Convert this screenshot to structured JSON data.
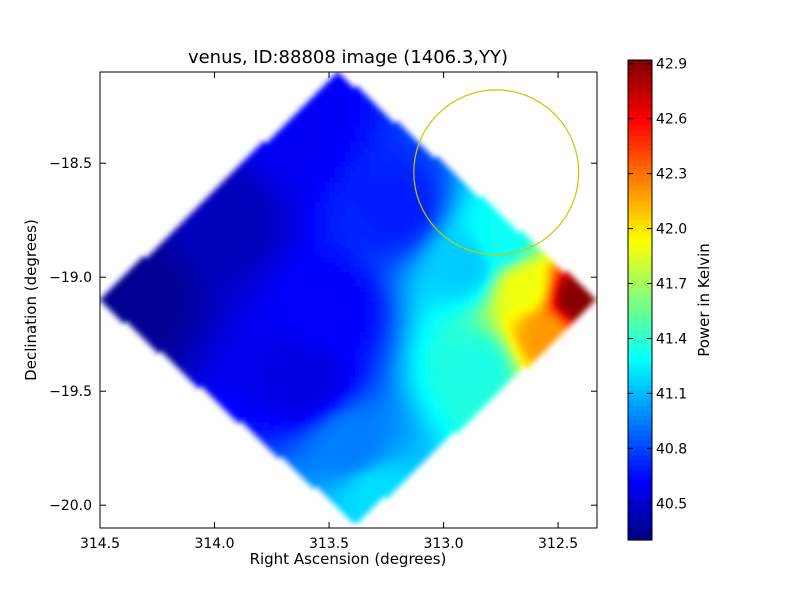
{
  "chart_data": {
    "type": "heatmap",
    "title": "venus, ID:88808 image (1406.3,YY)",
    "xlabel": "Right Ascension (degrees)",
    "ylabel": "Declination (degrees)",
    "xlim": [
      314.5,
      312.33
    ],
    "ylim": [
      -20.1,
      -18.1
    ],
    "x_ticks": [
      314.5,
      314.0,
      313.5,
      313.0,
      312.5
    ],
    "x_tick_labels": [
      "314.5",
      "314.0",
      "313.5",
      "313.0",
      "312.5"
    ],
    "y_ticks": [
      -18.5,
      -19.0,
      -19.5,
      -20.0
    ],
    "y_tick_labels": [
      "−18.5",
      "−19.0",
      "−19.5",
      "−20.0"
    ],
    "colorbar": {
      "label": "Power in Kelvin",
      "colormap": "jet",
      "range": [
        40.3,
        42.92
      ],
      "ticks": [
        40.5,
        40.8,
        41.1,
        41.4,
        41.7,
        42.0,
        42.3,
        42.6,
        42.9
      ],
      "tick_labels": [
        "40.5",
        "40.8",
        "41.1",
        "41.4",
        "41.7",
        "42.0",
        "42.3",
        "42.6",
        "42.9"
      ]
    },
    "footprint_corners": {
      "north": [
        313.46,
        -18.1
      ],
      "east": [
        314.5,
        -19.1
      ],
      "south": [
        313.38,
        -20.08
      ],
      "west": [
        312.33,
        -19.1
      ]
    },
    "field_samples": [
      {
        "ra": 314.35,
        "dec": -19.08,
        "value": 40.35
      },
      {
        "ra": 313.95,
        "dec": -18.75,
        "value": 40.45
      },
      {
        "ra": 313.65,
        "dec": -18.35,
        "value": 40.6
      },
      {
        "ra": 313.5,
        "dec": -19.15,
        "value": 40.62
      },
      {
        "ra": 313.6,
        "dec": -19.45,
        "value": 40.55
      },
      {
        "ra": 313.2,
        "dec": -18.7,
        "value": 40.7
      },
      {
        "ra": 313.4,
        "dec": -19.75,
        "value": 40.95
      },
      {
        "ra": 313.3,
        "dec": -19.95,
        "value": 41.2
      },
      {
        "ra": 312.85,
        "dec": -19.4,
        "value": 41.35
      },
      {
        "ra": 312.9,
        "dec": -18.95,
        "value": 41.15
      },
      {
        "ra": 312.75,
        "dec": -18.85,
        "value": 41.3
      },
      {
        "ra": 312.65,
        "dec": -19.05,
        "value": 41.9
      },
      {
        "ra": 312.55,
        "dec": -19.25,
        "value": 42.2
      },
      {
        "ra": 312.42,
        "dec": -19.1,
        "value": 42.9
      }
    ],
    "annotations": [
      {
        "type": "circle",
        "center_ra": 312.77,
        "center_dec": -18.54,
        "radius_ra_deg": 0.36,
        "color": "#c8c800"
      }
    ]
  }
}
